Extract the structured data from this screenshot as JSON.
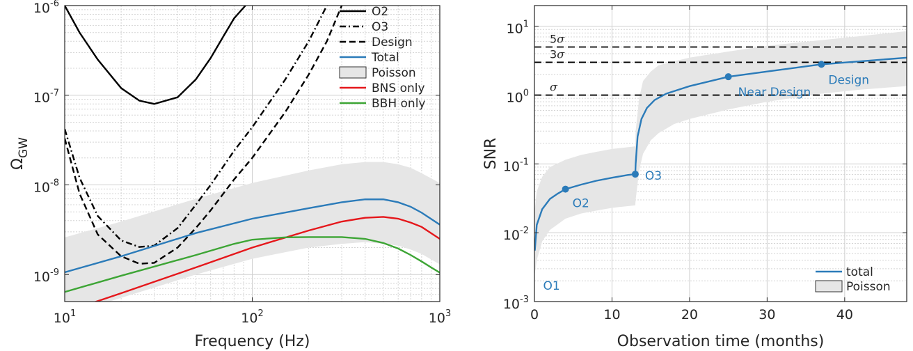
{
  "chart_data": [
    {
      "type": "line",
      "ylabel_base": "Ω",
      "ylabel_sub": "GW",
      "xlabel": "Frequency (Hz)",
      "xscale": "log",
      "yscale": "log",
      "xlim": [
        10,
        1000
      ],
      "ylim": [
        5e-10,
        1e-06
      ],
      "grid": true,
      "legend_location": "top-right",
      "xticks": [
        {
          "value": 10,
          "base": "10",
          "exp": "1"
        },
        {
          "value": 100,
          "base": "10",
          "exp": "2"
        },
        {
          "value": 1000,
          "base": "10",
          "exp": "3"
        }
      ],
      "yticks": [
        {
          "value": 1e-09,
          "base": "10",
          "exp": "-9"
        },
        {
          "value": 1e-08,
          "base": "10",
          "exp": "-8"
        },
        {
          "value": 1e-07,
          "base": "10",
          "exp": "-7"
        },
        {
          "value": 1e-06,
          "base": "10",
          "exp": "-6"
        }
      ],
      "series": [
        {
          "name": "O2",
          "color": "#000000",
          "dash": "solid",
          "x": [
            10,
            12,
            15,
            20,
            25,
            30,
            40,
            50,
            60,
            70,
            80,
            92
          ],
          "y": [
            1e-06,
            5e-07,
            2.5e-07,
            1.2e-07,
            8.7e-08,
            8e-08,
            9.5e-08,
            1.5e-07,
            2.6e-07,
            4.5e-07,
            7.2e-07,
            1e-06
          ]
        },
        {
          "name": "O3",
          "color": "#000000",
          "dash": "dashdot",
          "x": [
            10,
            12,
            15,
            20,
            25,
            30,
            40,
            50,
            60,
            80,
            100,
            150,
            200,
            250
          ],
          "y": [
            4.2e-08,
            1.2e-08,
            4.5e-09,
            2.4e-09,
            2.03e-09,
            2.1e-09,
            3.3e-09,
            6e-09,
            1e-08,
            2.4e-08,
            4.4e-08,
            1.5e-07,
            4e-07,
            1e-06
          ]
        },
        {
          "name": "Design",
          "color": "#000000",
          "dash": "dashed",
          "x": [
            10,
            12,
            15,
            20,
            25,
            30,
            40,
            50,
            60,
            80,
            100,
            150,
            200,
            250,
            300
          ],
          "y": [
            3.3e-08,
            8e-09,
            2.8e-09,
            1.6e-09,
            1.32e-09,
            1.35e-09,
            2e-09,
            3.3e-09,
            5.2e-09,
            1.15e-08,
            2e-08,
            6.5e-08,
            1.7e-07,
            4e-07,
            1e-06
          ]
        },
        {
          "name": "Total",
          "color": "#2B7BB9",
          "dash": "solid",
          "x": [
            10,
            20,
            50,
            100,
            200,
            300,
            400,
            500,
            600,
            700,
            800,
            1000
          ],
          "y": [
            1.06e-09,
            1.6e-09,
            2.9e-09,
            4.2e-09,
            5.5e-09,
            6.4e-09,
            6.9e-09,
            6.9e-09,
            6.4e-09,
            5.7e-09,
            4.9e-09,
            3.6e-09
          ]
        },
        {
          "name": "BNS only",
          "color": "#E5171B",
          "dash": "solid",
          "x": [
            10,
            20,
            50,
            100,
            200,
            300,
            400,
            500,
            600,
            700,
            800,
            1000
          ],
          "y": [
            3.8e-10,
            6.2e-10,
            1.2e-09,
            2e-09,
            3.1e-09,
            3.9e-09,
            4.3e-09,
            4.4e-09,
            4.2e-09,
            3.8e-09,
            3.4e-09,
            2.5e-09
          ]
        },
        {
          "name": "BBH only",
          "color": "#3DA535",
          "dash": "solid",
          "x": [
            10,
            20,
            50,
            80,
            100,
            150,
            200,
            300,
            400,
            500,
            600,
            700,
            800,
            900,
            1000
          ],
          "y": [
            6.4e-10,
            9.7e-10,
            1.65e-09,
            2.2e-09,
            2.45e-09,
            2.6e-09,
            2.62e-09,
            2.62e-09,
            2.5e-09,
            2.25e-09,
            1.95e-09,
            1.65e-09,
            1.4e-09,
            1.2e-09,
            1.05e-09
          ]
        }
      ],
      "band": {
        "name": "Poisson",
        "color": "#E6E6E6",
        "x": [
          10,
          20,
          50,
          100,
          200,
          300,
          400,
          500,
          600,
          700,
          800,
          1000
        ],
        "lower": [
          3.5e-10,
          5.5e-10,
          1e-09,
          1.5e-09,
          2e-09,
          2.2e-09,
          2.3e-09,
          2.2e-09,
          2.1e-09,
          1.9e-09,
          1.7e-09,
          1.3e-09
        ],
        "upper": [
          2.6e-09,
          3.9e-09,
          7e-09,
          1.05e-08,
          1.45e-08,
          1.7e-08,
          1.8e-08,
          1.8e-08,
          1.7e-08,
          1.55e-08,
          1.35e-08,
          1.05e-08
        ]
      }
    },
    {
      "type": "line",
      "ylabel": "SNR",
      "xlabel": "Observation time (months)",
      "xscale": "linear",
      "yscale": "log",
      "xlim": [
        0,
        48
      ],
      "ylim": [
        0.001,
        20
      ],
      "grid": true,
      "legend_location": "bottom-right",
      "xticks": [
        {
          "value": 0,
          "label": "0"
        },
        {
          "value": 10,
          "label": "10"
        },
        {
          "value": 20,
          "label": "20"
        },
        {
          "value": 30,
          "label": "30"
        },
        {
          "value": 40,
          "label": "40"
        }
      ],
      "yticks": [
        {
          "value": 0.001,
          "base": "10",
          "exp": "-3"
        },
        {
          "value": 0.01,
          "base": "10",
          "exp": "-2"
        },
        {
          "value": 0.1,
          "base": "10",
          "exp": "-1"
        },
        {
          "value": 1,
          "base": "10",
          "exp": "0"
        },
        {
          "value": 10,
          "base": "10",
          "exp": "1"
        }
      ],
      "series": [
        {
          "name": "total",
          "color": "#2B7BB9",
          "x": [
            0.05,
            0.3,
            1,
            2,
            3,
            4,
            6,
            8,
            10,
            12,
            13,
            13.05,
            13.3,
            13.8,
            14.5,
            15.5,
            17,
            20,
            25,
            30,
            37,
            42,
            48
          ],
          "y": [
            0.0055,
            0.013,
            0.022,
            0.031,
            0.037,
            0.043,
            0.05,
            0.057,
            0.063,
            0.069,
            0.071,
            0.1,
            0.25,
            0.45,
            0.65,
            0.85,
            1.05,
            1.35,
            1.85,
            2.2,
            2.8,
            3.1,
            3.5
          ]
        }
      ],
      "band": {
        "name": "Poisson",
        "color": "#E6E6E6",
        "x": [
          0.05,
          0.3,
          1,
          2,
          4,
          6,
          8,
          10,
          13,
          13.05,
          13.5,
          14,
          15,
          16,
          18,
          20,
          25,
          30,
          37,
          42,
          48
        ],
        "lower": [
          0.0025,
          0.004,
          0.0075,
          0.011,
          0.016,
          0.019,
          0.021,
          0.023,
          0.025,
          0.03,
          0.08,
          0.14,
          0.22,
          0.28,
          0.38,
          0.45,
          0.62,
          0.8,
          1.05,
          1.2,
          1.35
        ],
        "upper": [
          0.022,
          0.04,
          0.065,
          0.09,
          0.115,
          0.135,
          0.15,
          0.165,
          0.18,
          0.3,
          0.9,
          1.6,
          2.2,
          2.7,
          3.1,
          3.5,
          4.3,
          5.2,
          6.3,
          7.2,
          8.5
        ]
      },
      "points": [
        {
          "label": "O1",
          "x": 0.05,
          "y": 0.0055
        },
        {
          "label": "O2",
          "x": 4,
          "y": 0.043
        },
        {
          "label": "O3",
          "x": 13,
          "y": 0.071
        },
        {
          "label": "Near Design",
          "x": 25,
          "y": 1.85
        },
        {
          "label": "Design",
          "x": 37,
          "y": 2.8
        }
      ],
      "thresholds": [
        {
          "value": 5,
          "num": "5",
          "sym": "σ"
        },
        {
          "value": 3,
          "num": "3",
          "sym": "σ"
        },
        {
          "value": 1,
          "num": "",
          "sym": "σ"
        }
      ]
    }
  ]
}
